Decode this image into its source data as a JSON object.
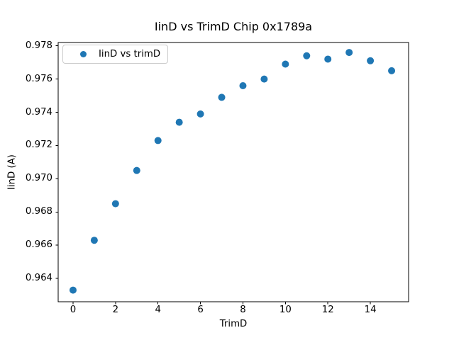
{
  "chart_data": {
    "type": "scatter",
    "title": "IinD vs TrimD Chip 0x1789a",
    "xlabel": "TrimD",
    "ylabel": "IinD (A)",
    "legend": {
      "label": "IinD vs trimD",
      "position": "upper left"
    },
    "x": [
      0,
      1,
      2,
      3,
      4,
      5,
      6,
      7,
      8,
      9,
      10,
      11,
      12,
      13,
      14,
      15
    ],
    "y": [
      0.9633,
      0.9663,
      0.9685,
      0.9705,
      0.9723,
      0.9734,
      0.9739,
      0.9749,
      0.9756,
      0.976,
      0.9769,
      0.9774,
      0.9772,
      0.9776,
      0.9771,
      0.9765
    ],
    "xlim": [
      -0.7,
      15.8
    ],
    "ylim": [
      0.9626,
      0.9782
    ],
    "xticks": [
      0,
      2,
      4,
      6,
      8,
      10,
      12,
      14
    ],
    "xtick_labels": [
      "0",
      "2",
      "4",
      "6",
      "8",
      "10",
      "12",
      "14"
    ],
    "yticks": [
      0.964,
      0.966,
      0.968,
      0.97,
      0.972,
      0.974,
      0.976,
      0.978
    ],
    "ytick_labels": [
      "0.964",
      "0.966",
      "0.968",
      "0.970",
      "0.972",
      "0.974",
      "0.976",
      "0.978"
    ],
    "grid": false,
    "legend_position": "upper left",
    "marker_color": "#1f77b4",
    "spine_color": "#000000",
    "background": "#ffffff"
  }
}
